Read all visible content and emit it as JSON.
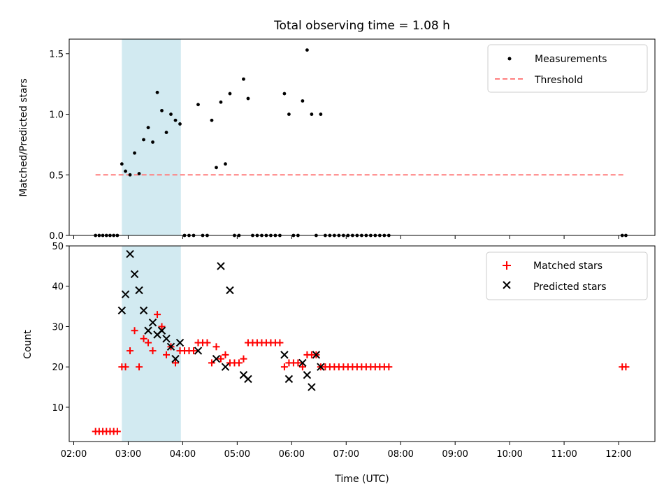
{
  "chart_data": [
    {
      "type": "scatter",
      "title": "Total observing time = 1.08 h",
      "xlabel": "",
      "ylabel": "Matched/Predicted stars",
      "xlim": [
        "01:55",
        "12:40"
      ],
      "ylim": [
        0,
        1.62
      ],
      "yticks": [
        0.0,
        0.5,
        1.0,
        1.5
      ],
      "ytick_labels": [
        "0.0",
        "0.5",
        "1.0",
        "1.5"
      ],
      "highlight_span": {
        "start": "02:53",
        "end": "03:58",
        "color": "#add8e6"
      },
      "legend": {
        "placement": "top-right",
        "entries": [
          "Measurements",
          "Threshold"
        ]
      },
      "series": [
        {
          "name": "Measurements",
          "kind": "points",
          "color": "#000000",
          "x": [
            "02:24",
            "02:28",
            "02:32",
            "02:36",
            "02:40",
            "02:44",
            "02:48",
            "02:53",
            "02:57",
            "03:02",
            "03:07",
            "03:12",
            "03:17",
            "03:22",
            "03:27",
            "03:32",
            "03:37",
            "03:42",
            "03:47",
            "03:52",
            "03:57",
            "04:02",
            "04:07",
            "04:12",
            "04:17",
            "04:22",
            "04:27",
            "04:32",
            "04:37",
            "04:42",
            "04:47",
            "04:52",
            "04:57",
            "05:02",
            "05:07",
            "05:12",
            "05:17",
            "05:22",
            "05:27",
            "05:32",
            "05:37",
            "05:42",
            "05:47",
            "05:52",
            "05:57",
            "06:02",
            "06:07",
            "06:12",
            "06:17",
            "06:22",
            "06:27",
            "06:32",
            "06:37",
            "06:42",
            "06:47",
            "06:52",
            "06:57",
            "07:02",
            "07:07",
            "07:12",
            "07:17",
            "07:22",
            "07:27",
            "07:32",
            "07:37",
            "07:42",
            "07:47",
            "12:04",
            "12:08"
          ],
          "y": [
            0,
            0,
            0,
            0,
            0,
            0,
            0,
            0.59,
            0.53,
            0.5,
            0.68,
            0.51,
            0.79,
            0.89,
            0.77,
            1.18,
            1.03,
            0.85,
            1.0,
            0.95,
            0.92,
            0,
            0,
            0,
            1.08,
            0,
            0,
            0.95,
            0.56,
            1.1,
            0.59,
            1.17,
            0,
            0,
            1.29,
            1.13,
            0,
            0,
            0,
            0,
            0,
            0,
            0,
            1.17,
            1.0,
            0,
            0,
            1.11,
            1.53,
            1.0,
            0,
            1.0,
            0,
            0,
            0,
            0,
            0,
            0,
            0,
            0,
            0,
            0,
            0,
            0,
            0,
            0,
            0,
            0,
            0
          ]
        },
        {
          "name": "Threshold",
          "kind": "dashed-line",
          "color": "#ff7f7f",
          "x": [
            "02:24",
            "12:08"
          ],
          "y": [
            0.5,
            0.5
          ]
        }
      ]
    },
    {
      "type": "scatter",
      "title": "",
      "xlabel": "Time (UTC)",
      "ylabel": "Count",
      "xlim": [
        "01:55",
        "12:40"
      ],
      "ylim": [
        1.5,
        50
      ],
      "yticks": [
        10,
        20,
        30,
        40,
        50
      ],
      "ytick_labels": [
        "10",
        "20",
        "30",
        "40",
        "50"
      ],
      "xticks": [
        "02:00",
        "03:00",
        "04:00",
        "05:00",
        "06:00",
        "07:00",
        "08:00",
        "09:00",
        "10:00",
        "11:00",
        "12:00"
      ],
      "highlight_span": {
        "start": "02:53",
        "end": "03:58",
        "color": "#add8e6"
      },
      "legend": {
        "placement": "top-right",
        "entries": [
          "Matched stars",
          "Predicted stars"
        ]
      },
      "series": [
        {
          "name": "Matched stars",
          "marker": "plus",
          "color": "#ff0000",
          "x": [
            "02:24",
            "02:28",
            "02:32",
            "02:36",
            "02:40",
            "02:44",
            "02:48",
            "02:53",
            "02:57",
            "03:02",
            "03:07",
            "03:12",
            "03:17",
            "03:22",
            "03:27",
            "03:32",
            "03:37",
            "03:42",
            "03:47",
            "03:52",
            "03:57",
            "04:02",
            "04:07",
            "04:12",
            "04:17",
            "04:22",
            "04:27",
            "04:32",
            "04:37",
            "04:42",
            "04:47",
            "04:52",
            "04:57",
            "05:02",
            "05:07",
            "05:12",
            "05:17",
            "05:22",
            "05:27",
            "05:32",
            "05:37",
            "05:42",
            "05:47",
            "05:52",
            "05:57",
            "06:02",
            "06:07",
            "06:12",
            "06:17",
            "06:22",
            "06:27",
            "06:32",
            "06:37",
            "06:42",
            "06:47",
            "06:52",
            "06:57",
            "07:02",
            "07:07",
            "07:12",
            "07:17",
            "07:22",
            "07:27",
            "07:32",
            "07:37",
            "07:42",
            "07:47",
            "12:04",
            "12:08"
          ],
          "y": [
            4,
            4,
            4,
            4,
            4,
            4,
            4,
            20,
            20,
            24,
            29,
            20,
            27,
            26,
            24,
            33,
            30,
            23,
            25,
            21,
            24,
            24,
            24,
            24,
            26,
            26,
            26,
            21,
            25,
            22,
            23,
            21,
            21,
            21,
            22,
            26,
            26,
            26,
            26,
            26,
            26,
            26,
            26,
            20,
            21,
            21,
            21,
            20,
            23,
            23,
            23,
            20,
            20,
            20,
            20,
            20,
            20,
            20,
            20,
            20,
            20,
            20,
            20,
            20,
            20,
            20,
            20,
            20,
            20
          ]
        },
        {
          "name": "Predicted stars",
          "marker": "x",
          "color": "#000000",
          "x": [
            "02:53",
            "02:57",
            "03:02",
            "03:07",
            "03:12",
            "03:17",
            "03:22",
            "03:27",
            "03:32",
            "03:37",
            "03:42",
            "03:47",
            "03:52",
            "03:57",
            "04:17",
            "04:37",
            "04:42",
            "04:47",
            "04:52",
            "05:07",
            "05:12",
            "05:52",
            "05:57",
            "06:12",
            "06:17",
            "06:22",
            "06:27",
            "06:32"
          ],
          "y": [
            34,
            38,
            48,
            43,
            39,
            34,
            29,
            31,
            28,
            29,
            27,
            25,
            22,
            26,
            24,
            22,
            45,
            20,
            39,
            18,
            17,
            23,
            17,
            21,
            18,
            15,
            23,
            20
          ]
        }
      ]
    }
  ]
}
